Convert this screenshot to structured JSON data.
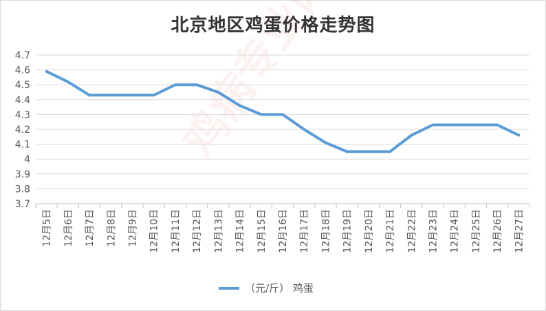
{
  "chart_data": {
    "type": "line",
    "title": "北京地区鸡蛋价格走势图",
    "categories": [
      "12月5日",
      "12月6日",
      "12月7日",
      "12月8日",
      "12月9日",
      "12月10日",
      "12月11日",
      "12月12日",
      "12月13日",
      "12月14日",
      "12月15日",
      "12月16日",
      "12月17日",
      "12月18日",
      "12月19日",
      "12月20日",
      "12月21日",
      "12月22日",
      "12月23日",
      "12月24日",
      "12月25日",
      "12月26日",
      "12月27日"
    ],
    "series": [
      {
        "name": "（元/斤）  鸡蛋",
        "color": "#5b9bd5",
        "values": [
          4.59,
          4.52,
          4.43,
          4.43,
          4.43,
          4.43,
          4.5,
          4.5,
          4.45,
          4.36,
          4.3,
          4.3,
          4.2,
          4.11,
          4.05,
          4.05,
          4.05,
          4.16,
          4.23,
          4.23,
          4.23,
          4.23,
          4.16
        ]
      }
    ],
    "ylim": [
      3.7,
      4.7
    ],
    "yticks": [
      "3.7",
      "3.8",
      "3.9",
      "4",
      "4.1",
      "4.2",
      "4.3",
      "4.4",
      "4.5",
      "4.6",
      "4.7"
    ],
    "grid": true,
    "legend": "bottom"
  },
  "watermark": "鸡病专业网"
}
